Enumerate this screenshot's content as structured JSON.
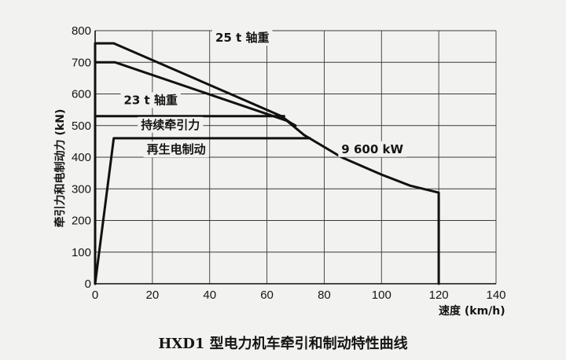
{
  "chart_data": {
    "type": "line",
    "title": "",
    "caption": "HXD1 型电力机车牵引和制动特性曲线",
    "xlabel": "速度 (km/h)",
    "ylabel": "牵引力和电制动力 (kN)",
    "xlim": [
      0,
      140
    ],
    "ylim": [
      0,
      800
    ],
    "x_ticks": [
      0,
      20,
      40,
      60,
      80,
      100,
      120,
      140
    ],
    "y_ticks": [
      0,
      100,
      200,
      300,
      400,
      500,
      600,
      700,
      800
    ],
    "grid": true,
    "series": [
      {
        "name": "25 t 轴重",
        "x": [
          0,
          0,
          6.5,
          65,
          68
        ],
        "y": [
          0,
          760,
          760,
          530,
          510
        ]
      },
      {
        "name": "23 t 轴重",
        "x": [
          0,
          0,
          7,
          67,
          70
        ],
        "y": [
          0,
          700,
          700,
          515,
          500
        ]
      },
      {
        "name": "持续牵引力",
        "x": [
          0,
          66
        ],
        "y": [
          530,
          530
        ]
      },
      {
        "name": "9 600 kW",
        "x": [
          65,
          73,
          86,
          100,
          110,
          120,
          120
        ],
        "y": [
          530,
          470,
          400,
          345,
          310,
          288,
          0
        ]
      },
      {
        "name": "再生电制动",
        "x": [
          0,
          6.5,
          75
        ],
        "y": [
          0,
          460,
          460
        ]
      }
    ],
    "annotations": [
      {
        "text": "25 t 轴重",
        "x": 42,
        "y": 765
      },
      {
        "text": "23 t 轴重",
        "x": 10,
        "y": 568
      },
      {
        "text": "持续牵引力",
        "x": 16,
        "y": 490
      },
      {
        "text": "再生电制动",
        "x": 18,
        "y": 412
      },
      {
        "text": "9 600 kW",
        "x": 86,
        "y": 413
      }
    ]
  }
}
